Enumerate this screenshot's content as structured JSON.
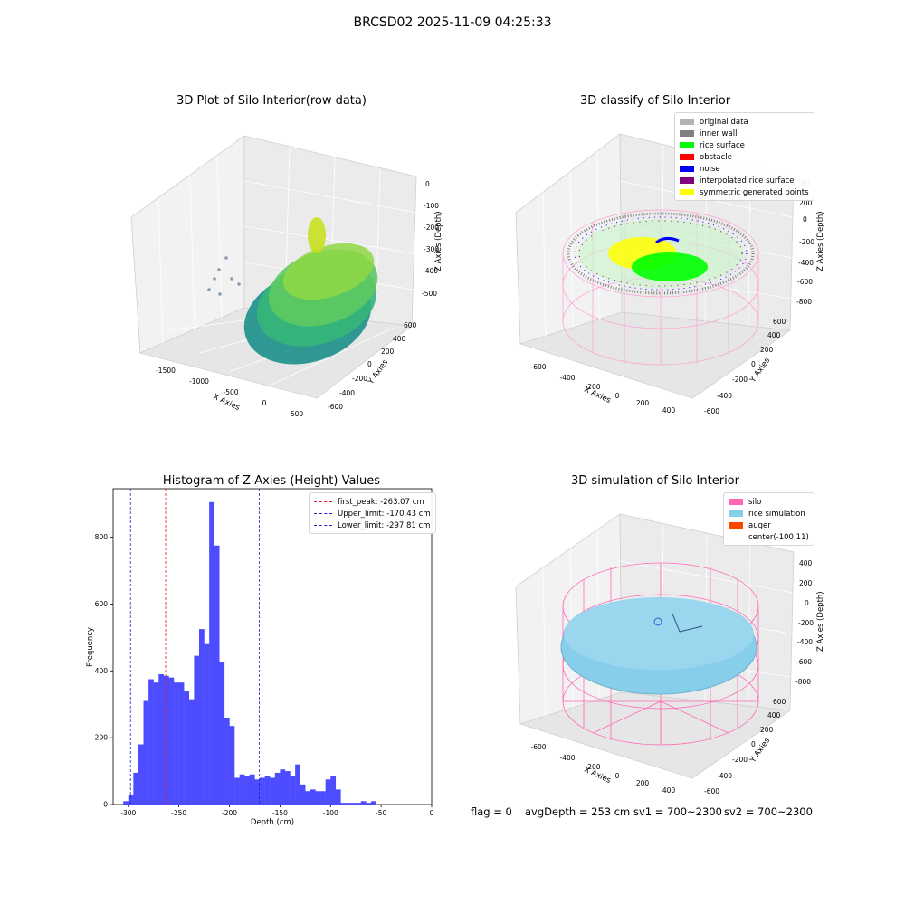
{
  "suptitle": "BRCSD02 2025-11-09 04:25:33",
  "colors": {
    "viridis": [
      "#440154",
      "#3b528b",
      "#21918c",
      "#5ec962",
      "#fde725"
    ],
    "histogram_bar": "#4d4dff",
    "first_peak_line": "#e41a1c",
    "limit_line": "#1f1fcc"
  },
  "chart_data": [
    {
      "type": "scatter",
      "subtype": "3d",
      "title": "3D Plot of Silo Interior(row data)",
      "xlabel": "X Axies",
      "ylabel": "Y Axies",
      "zlabel": "Z Axies (Depth)",
      "x_ticks": [
        "-1500",
        "-1000",
        "-500",
        "0",
        "500"
      ],
      "y_ticks": [
        "-600",
        "-400",
        "-200",
        "0",
        "200",
        "400",
        "600"
      ],
      "z_ticks": [
        "0",
        "-100",
        "-200",
        "-300",
        "-400",
        "-500"
      ],
      "colormap": "viridis",
      "grid": true
    },
    {
      "type": "scatter",
      "subtype": "3d",
      "title": "3D classify of Silo Interior",
      "xlabel": "X Axies",
      "ylabel": "Y Axies",
      "zlabel": "Z Axies (Depth)",
      "x_ticks": [
        "-600",
        "-400",
        "-200",
        "0",
        "200",
        "400"
      ],
      "y_ticks": [
        "-600",
        "-400",
        "-200",
        "0",
        "200",
        "400",
        "600"
      ],
      "z_ticks": [
        "200",
        "0",
        "-200",
        "-400",
        "-600",
        "-800"
      ],
      "z_top_partial": "00",
      "legend": [
        {
          "label": "original data",
          "color": "#b3b3b3"
        },
        {
          "label": "inner wall",
          "color": "#808080"
        },
        {
          "label": "rice surface",
          "color": "#00ff00"
        },
        {
          "label": "obstacle",
          "color": "#ff0000"
        },
        {
          "label": "noise",
          "color": "#0000ff"
        },
        {
          "label": "interpolated rice surface",
          "color": "#800080"
        },
        {
          "label": "symmetric generated points",
          "color": "#ffff00"
        }
      ],
      "legend_position": "top-right",
      "grid": true
    },
    {
      "type": "bar",
      "subtype": "histogram",
      "title": "Histogram of Z-Axies (Height) Values",
      "xlabel": "Depth (cm)",
      "ylabel": "Frequency",
      "xlim": [
        -315,
        0
      ],
      "ylim": [
        0,
        945
      ],
      "x_ticks": [
        -300,
        -250,
        -200,
        -150,
        -100,
        -50,
        0
      ],
      "y_ticks": [
        0,
        200,
        400,
        600,
        800
      ],
      "bin_width": 5,
      "bin_start": -305,
      "values": [
        10,
        30,
        95,
        180,
        310,
        375,
        365,
        390,
        385,
        380,
        365,
        365,
        340,
        315,
        445,
        525,
        480,
        905,
        775,
        425,
        260,
        235,
        80,
        90,
        85,
        90,
        75,
        80,
        85,
        80,
        95,
        105,
        100,
        85,
        120,
        60,
        40,
        45,
        40,
        40,
        75,
        85,
        45,
        5,
        5,
        5,
        5,
        10,
        5,
        10
      ],
      "ref_lines": [
        {
          "label": "first_peak: -263.07 cm",
          "x": -263.07,
          "color": "#e41a1c"
        },
        {
          "label": "Upper_limit: -170.43 cm",
          "x": -170.43,
          "color": "#1f1fcc"
        },
        {
          "label": "Lower_limit: -297.81 cm",
          "x": -297.81,
          "color": "#1f1fcc"
        }
      ],
      "legend_position": "top-right"
    },
    {
      "type": "scatter",
      "subtype": "3d",
      "title": "3D simulation of Silo Interior",
      "xlabel": "X Axies",
      "ylabel": "Y Axies",
      "zlabel": "Z Axies (Depth)",
      "x_ticks": [
        "-600",
        "-400",
        "-200",
        "0",
        "200",
        "400"
      ],
      "y_ticks": [
        "-600",
        "-400",
        "-200",
        "0",
        "200",
        "400",
        "600"
      ],
      "z_ticks": [
        "400",
        "200",
        "0",
        "-200",
        "-400",
        "-600",
        "-800"
      ],
      "legend": [
        {
          "label": "silo",
          "color": "#ff69b4"
        },
        {
          "label": "rice simulation",
          "color": "#87ceeb"
        },
        {
          "label": "auger",
          "color": "#ff4500"
        },
        {
          "label": "center(-100,11)",
          "color": ""
        }
      ],
      "legend_position": "top-right",
      "grid": true
    }
  ],
  "status": {
    "flag": "flag = 0",
    "avg_depth": "avgDepth = 253 cm",
    "sv1": "sv1 = 700~2300",
    "sv2": "sv2 = 700~2300"
  }
}
